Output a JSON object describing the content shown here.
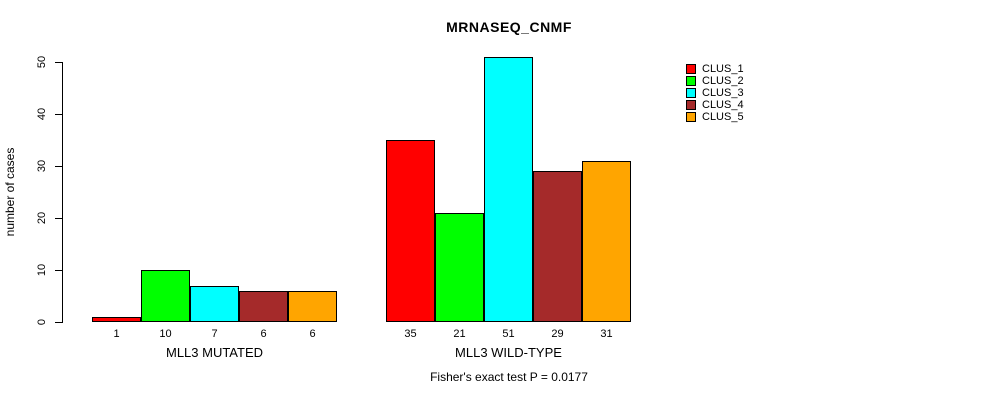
{
  "title": "MRNASEQ_CNMF",
  "footer": "Fisher's exact test P = 0.0177",
  "chart_data": {
    "type": "bar",
    "title": "MRNASEQ_CNMF",
    "xlabel": "",
    "ylabel": "number of cases",
    "ylim": [
      0,
      50
    ],
    "yticks": [
      0,
      10,
      20,
      30,
      40,
      50
    ],
    "grid": false,
    "legend_position": "right",
    "bar_value_labels_shown": true,
    "annotation": "Fisher's exact test P = 0.0177",
    "series": [
      {
        "name": "CLUS_1",
        "color": "#FF0000"
      },
      {
        "name": "CLUS_2",
        "color": "#00FF00"
      },
      {
        "name": "CLUS_3",
        "color": "#00FFFF"
      },
      {
        "name": "CLUS_4",
        "color": "#A52A2A"
      },
      {
        "name": "CLUS_5",
        "color": "#FFA500"
      }
    ],
    "groups": [
      {
        "label": "MLL3 MUTATED",
        "values": [
          1,
          10,
          7,
          6,
          6
        ]
      },
      {
        "label": "MLL3 WILD-TYPE",
        "values": [
          35,
          21,
          51,
          29,
          31
        ]
      }
    ]
  },
  "colors": {
    "axis": "#000000",
    "text": "#000000",
    "background": "#FFFFFF",
    "bar_border": "#000000"
  }
}
